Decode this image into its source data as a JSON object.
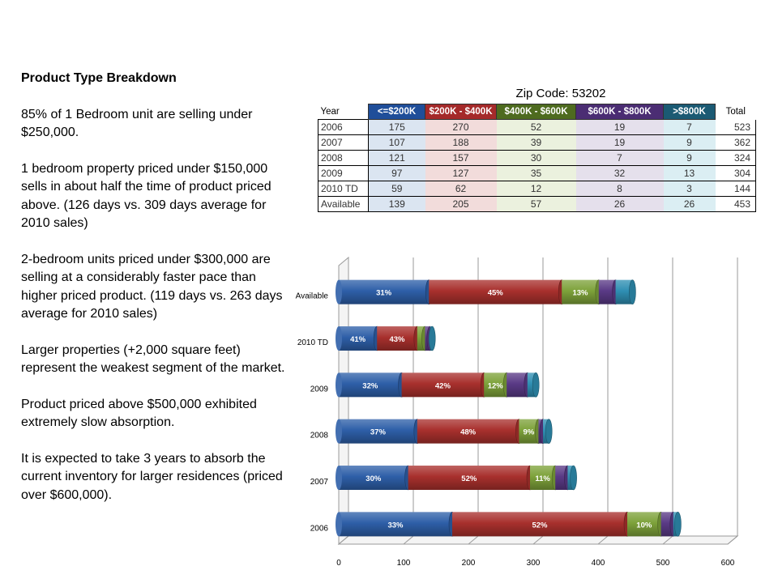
{
  "left_panel": {
    "heading": "Product Type Breakdown",
    "paragraphs": [
      "85% of 1 Bedroom unit are selling under $250,000.",
      "1 bedroom property priced under $150,000 sells in about half the time of product priced above. (126 days vs. 309 days  average for 2010 sales)",
      "2-bedroom units priced under $300,000 are selling at a considerably faster pace than higher priced product. (119 days vs. 263 days average for 2010 sales)",
      "Larger properties (+2,000 square feet) represent the weakest segment of the market.",
      "Product priced above $500,000 exhibited extremely slow absorption.",
      "It is expected to take 3 years to absorb the current inventory for larger residences (priced over $600,000)."
    ]
  },
  "table": {
    "title": "Zip Code: 53202",
    "headers": [
      "Year",
      "<=$200K",
      "$200K - $400K",
      "$400K - $600K",
      "$600K - $800K",
      ">$800K",
      "Total"
    ],
    "header_colors": [
      "",
      "#1f4e99",
      "#a52a2a",
      "#4e6b1f",
      "#4b2d73",
      "#1b5a73",
      ""
    ],
    "column_tints": [
      "#ffffff",
      "#dbe5f1",
      "#f2dcdb",
      "#ebf1de",
      "#e5e0ec",
      "#dbeef3",
      "#ffffff"
    ],
    "rows": [
      [
        "2006",
        "175",
        "270",
        "52",
        "19",
        "7",
        "523"
      ],
      [
        "2007",
        "107",
        "188",
        "39",
        "19",
        "9",
        "362"
      ],
      [
        "2008",
        "121",
        "157",
        "30",
        "7",
        "9",
        "324"
      ],
      [
        "2009",
        "97",
        "127",
        "35",
        "32",
        "13",
        "304"
      ],
      [
        "2010 TD",
        "59",
        "62",
        "12",
        "8",
        "3",
        "144"
      ],
      [
        "Available",
        "139",
        "205",
        "57",
        "26",
        "26",
        "453"
      ]
    ]
  },
  "chart_data": {
    "type": "bar",
    "orientation": "horizontal",
    "stacked": true,
    "categories": [
      "Available",
      "2010 TD",
      "2009",
      "2008",
      "2007",
      "2006"
    ],
    "series": [
      {
        "values": [
          139,
          59,
          97,
          121,
          107,
          175
        ],
        "color": "#2e5fa8"
      },
      {
        "values": [
          205,
          62,
          127,
          157,
          188,
          270
        ],
        "color": "#a8302d"
      },
      {
        "values": [
          57,
          12,
          35,
          30,
          39,
          52
        ],
        "color": "#7da23a"
      },
      {
        "values": [
          26,
          8,
          32,
          7,
          19,
          19
        ],
        "color": "#5a3a86"
      },
      {
        "values": [
          26,
          3,
          13,
          9,
          9,
          7
        ],
        "color": "#2f8fb3"
      }
    ],
    "data_labels": [
      [
        "31%",
        "45%",
        "13%"
      ],
      [
        "41%",
        "43%"
      ],
      [
        "32%",
        "42%",
        "12%"
      ],
      [
        "37%",
        "48%",
        "9%"
      ],
      [
        "30%",
        "52%",
        "11%"
      ],
      [
        "33%",
        "52%",
        "10%"
      ]
    ],
    "xlim": [
      0,
      600
    ],
    "xticks": [
      "0",
      "100",
      "200",
      "300",
      "400",
      "500",
      "600"
    ],
    "grid": true
  }
}
